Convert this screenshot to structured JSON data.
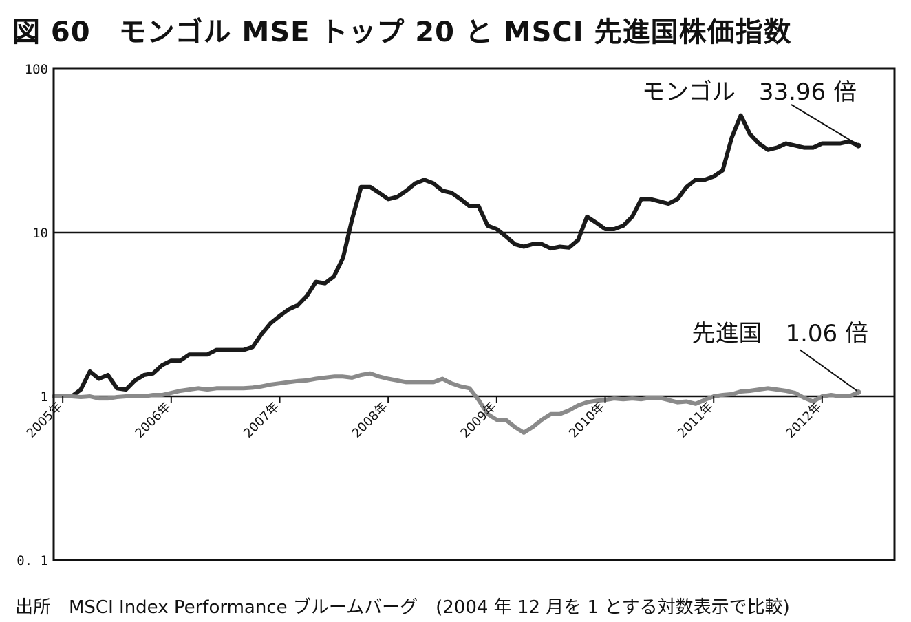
{
  "title": "図 60　モンゴル MSE トップ 20 と MSCI 先進国株価指数",
  "source_note": "出所　MSCI Index Performance ブルームバーグ　(2004 年 12 月を 1 とする対数表示で比較)",
  "chart_data": {
    "type": "line",
    "yscale": "log",
    "ylim": [
      0.1,
      100
    ],
    "yticks": [
      {
        "value": 100,
        "label": "100"
      },
      {
        "value": 10,
        "label": "10"
      },
      {
        "value": 1,
        "label": "1"
      },
      {
        "value": 0.1,
        "label": "0. 1"
      }
    ],
    "xlim": [
      "2004-12",
      "2012-09"
    ],
    "xticks": [
      {
        "date": "2005-01",
        "label": "2005年"
      },
      {
        "date": "2006-01",
        "label": "2006年"
      },
      {
        "date": "2007-01",
        "label": "2007年"
      },
      {
        "date": "2008-01",
        "label": "2008年"
      },
      {
        "date": "2009-01",
        "label": "2009年"
      },
      {
        "date": "2010-01",
        "label": "2010年"
      },
      {
        "date": "2011-01",
        "label": "2011年"
      },
      {
        "date": "2012-01",
        "label": "2012年"
      }
    ],
    "gridlines_y": [
      10,
      1
    ],
    "series": [
      {
        "name": "モンゴル",
        "color": "#1a1a1a",
        "points": [
          [
            "2004-12",
            1.0
          ],
          [
            "2005-01",
            1.0
          ],
          [
            "2005-02",
            1.0
          ],
          [
            "2005-03",
            1.1
          ],
          [
            "2005-04",
            1.42
          ],
          [
            "2005-05",
            1.28
          ],
          [
            "2005-06",
            1.35
          ],
          [
            "2005-07",
            1.12
          ],
          [
            "2005-08",
            1.1
          ],
          [
            "2005-09",
            1.25
          ],
          [
            "2005-10",
            1.35
          ],
          [
            "2005-11",
            1.38
          ],
          [
            "2005-12",
            1.55
          ],
          [
            "2006-01",
            1.65
          ],
          [
            "2006-02",
            1.65
          ],
          [
            "2006-03",
            1.8
          ],
          [
            "2006-04",
            1.8
          ],
          [
            "2006-05",
            1.8
          ],
          [
            "2006-06",
            1.92
          ],
          [
            "2006-07",
            1.92
          ],
          [
            "2006-08",
            1.92
          ],
          [
            "2006-09",
            1.92
          ],
          [
            "2006-10",
            2.0
          ],
          [
            "2006-11",
            2.4
          ],
          [
            "2006-12",
            2.8
          ],
          [
            "2007-01",
            3.1
          ],
          [
            "2007-02",
            3.4
          ],
          [
            "2007-03",
            3.6
          ],
          [
            "2007-04",
            4.1
          ],
          [
            "2007-05",
            5.0
          ],
          [
            "2007-06",
            4.9
          ],
          [
            "2007-07",
            5.4
          ],
          [
            "2007-08",
            7.0
          ],
          [
            "2007-09",
            12.0
          ],
          [
            "2007-10",
            19.0
          ],
          [
            "2007-11",
            19.0
          ],
          [
            "2007-12",
            17.5
          ],
          [
            "2008-01",
            16.0
          ],
          [
            "2008-02",
            16.5
          ],
          [
            "2008-03",
            18.0
          ],
          [
            "2008-04",
            20.0
          ],
          [
            "2008-05",
            21.0
          ],
          [
            "2008-06",
            20.0
          ],
          [
            "2008-07",
            18.0
          ],
          [
            "2008-08",
            17.5
          ],
          [
            "2008-09",
            16.0
          ],
          [
            "2008-10",
            14.5
          ],
          [
            "2008-11",
            14.5
          ],
          [
            "2008-12",
            11.0
          ],
          [
            "2009-01",
            10.5
          ],
          [
            "2009-02",
            9.5
          ],
          [
            "2009-03",
            8.5
          ],
          [
            "2009-04",
            8.2
          ],
          [
            "2009-05",
            8.5
          ],
          [
            "2009-06",
            8.5
          ],
          [
            "2009-07",
            8.0
          ],
          [
            "2009-08",
            8.2
          ],
          [
            "2009-09",
            8.1
          ],
          [
            "2009-10",
            9.0
          ],
          [
            "2009-11",
            12.5
          ],
          [
            "2009-12",
            11.5
          ],
          [
            "2010-01",
            10.5
          ],
          [
            "2010-02",
            10.5
          ],
          [
            "2010-03",
            11.0
          ],
          [
            "2010-04",
            12.5
          ],
          [
            "2010-05",
            16.0
          ],
          [
            "2010-06",
            16.0
          ],
          [
            "2010-07",
            15.5
          ],
          [
            "2010-08",
            15.0
          ],
          [
            "2010-09",
            16.0
          ],
          [
            "2010-10",
            19.0
          ],
          [
            "2010-11",
            21.0
          ],
          [
            "2010-12",
            21.0
          ],
          [
            "2011-01",
            22.0
          ],
          [
            "2011-02",
            24.0
          ],
          [
            "2011-03",
            38.0
          ],
          [
            "2011-04",
            52.0
          ],
          [
            "2011-05",
            40.0
          ],
          [
            "2011-06",
            35.0
          ],
          [
            "2011-07",
            32.0
          ],
          [
            "2011-08",
            33.0
          ],
          [
            "2011-09",
            35.0
          ],
          [
            "2011-10",
            34.0
          ],
          [
            "2011-11",
            33.0
          ],
          [
            "2011-12",
            33.0
          ],
          [
            "2012-01",
            35.0
          ],
          [
            "2012-02",
            35.0
          ],
          [
            "2012-03",
            35.0
          ],
          [
            "2012-04",
            36.0
          ],
          [
            "2012-05",
            33.96
          ]
        ]
      },
      {
        "name": "先進国",
        "color": "#8a8a8a",
        "points": [
          [
            "2004-12",
            1.0
          ],
          [
            "2005-01",
            1.0
          ],
          [
            "2005-02",
            1.0
          ],
          [
            "2005-03",
            0.99
          ],
          [
            "2005-04",
            1.0
          ],
          [
            "2005-05",
            0.97
          ],
          [
            "2005-06",
            0.97
          ],
          [
            "2005-07",
            0.99
          ],
          [
            "2005-08",
            1.0
          ],
          [
            "2005-09",
            1.0
          ],
          [
            "2005-10",
            1.0
          ],
          [
            "2005-11",
            1.02
          ],
          [
            "2005-12",
            1.02
          ],
          [
            "2006-01",
            1.05
          ],
          [
            "2006-02",
            1.08
          ],
          [
            "2006-03",
            1.1
          ],
          [
            "2006-04",
            1.12
          ],
          [
            "2006-05",
            1.1
          ],
          [
            "2006-06",
            1.12
          ],
          [
            "2006-07",
            1.12
          ],
          [
            "2006-08",
            1.12
          ],
          [
            "2006-09",
            1.12
          ],
          [
            "2006-10",
            1.13
          ],
          [
            "2006-11",
            1.15
          ],
          [
            "2006-12",
            1.18
          ],
          [
            "2007-01",
            1.2
          ],
          [
            "2007-02",
            1.22
          ],
          [
            "2007-03",
            1.24
          ],
          [
            "2007-04",
            1.25
          ],
          [
            "2007-05",
            1.28
          ],
          [
            "2007-06",
            1.3
          ],
          [
            "2007-07",
            1.32
          ],
          [
            "2007-08",
            1.32
          ],
          [
            "2007-09",
            1.3
          ],
          [
            "2007-10",
            1.35
          ],
          [
            "2007-11",
            1.38
          ],
          [
            "2007-12",
            1.32
          ],
          [
            "2008-01",
            1.28
          ],
          [
            "2008-02",
            1.25
          ],
          [
            "2008-03",
            1.22
          ],
          [
            "2008-04",
            1.22
          ],
          [
            "2008-05",
            1.22
          ],
          [
            "2008-06",
            1.22
          ],
          [
            "2008-07",
            1.28
          ],
          [
            "2008-08",
            1.2
          ],
          [
            "2008-09",
            1.15
          ],
          [
            "2008-10",
            1.12
          ],
          [
            "2008-11",
            0.95
          ],
          [
            "2008-12",
            0.78
          ],
          [
            "2009-01",
            0.72
          ],
          [
            "2009-02",
            0.72
          ],
          [
            "2009-03",
            0.65
          ],
          [
            "2009-04",
            0.6
          ],
          [
            "2009-05",
            0.65
          ],
          [
            "2009-06",
            0.72
          ],
          [
            "2009-07",
            0.78
          ],
          [
            "2009-08",
            0.78
          ],
          [
            "2009-09",
            0.82
          ],
          [
            "2009-10",
            0.88
          ],
          [
            "2009-11",
            0.92
          ],
          [
            "2009-12",
            0.94
          ],
          [
            "2010-01",
            0.95
          ],
          [
            "2010-02",
            0.97
          ],
          [
            "2010-03",
            0.96
          ],
          [
            "2010-04",
            0.97
          ],
          [
            "2010-05",
            0.96
          ],
          [
            "2010-06",
            0.98
          ],
          [
            "2010-07",
            0.98
          ],
          [
            "2010-08",
            0.95
          ],
          [
            "2010-09",
            0.92
          ],
          [
            "2010-10",
            0.93
          ],
          [
            "2010-11",
            0.9
          ],
          [
            "2010-12",
            0.95
          ],
          [
            "2011-01",
            1.0
          ],
          [
            "2011-02",
            1.02
          ],
          [
            "2011-03",
            1.03
          ],
          [
            "2011-04",
            1.07
          ],
          [
            "2011-05",
            1.08
          ],
          [
            "2011-06",
            1.1
          ],
          [
            "2011-07",
            1.12
          ],
          [
            "2011-08",
            1.1
          ],
          [
            "2011-09",
            1.08
          ],
          [
            "2011-10",
            1.05
          ],
          [
            "2011-11",
            0.98
          ],
          [
            "2011-12",
            0.93
          ],
          [
            "2012-01",
            1.0
          ],
          [
            "2012-02",
            1.02
          ],
          [
            "2012-03",
            1.0
          ],
          [
            "2012-04",
            1.0
          ],
          [
            "2012-05",
            1.06
          ]
        ]
      }
    ],
    "annotations": [
      {
        "text": "モンゴル　33.96 倍",
        "series": "モンゴル",
        "value": 33.96
      },
      {
        "text": "先進国　1.06 倍",
        "series": "先進国",
        "value": 1.06
      }
    ]
  }
}
